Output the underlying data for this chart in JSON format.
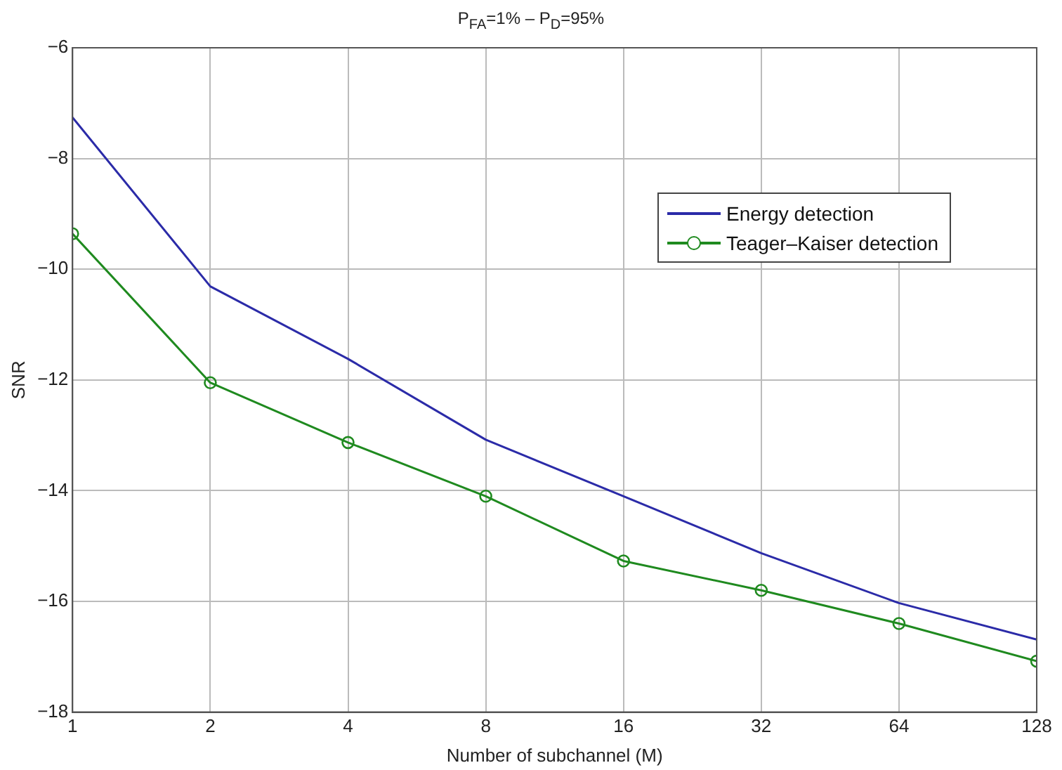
{
  "chart_data": {
    "type": "line",
    "title": "P$_{FA}$=1% – P$_{D}$=95%",
    "xlabel": "Number of subchannel (M)",
    "ylabel": "SNR",
    "log": "x",
    "x": [
      1,
      2,
      4,
      8,
      16,
      32,
      64,
      128
    ],
    "xlim": [
      1,
      128
    ],
    "xticks": [
      1,
      2,
      4,
      8,
      16,
      32,
      64,
      128
    ],
    "ylim": [
      -18,
      -6
    ],
    "yticks": [
      -18,
      -16,
      -14,
      -12,
      -10,
      -8,
      -6
    ],
    "grid": true,
    "legend": "top right",
    "series": [
      {
        "name": "Energy detection",
        "color": "#2b2ba8",
        "marker": "none",
        "values": [
          -7.26,
          -10.31,
          -11.62,
          -13.08,
          -14.1,
          -15.13,
          -16.03,
          -16.69
        ]
      },
      {
        "name": "Teager–Kaiser detection",
        "color": "#1f8a1f",
        "marker": "circle",
        "values": [
          -9.36,
          -12.05,
          -13.13,
          -14.1,
          -15.27,
          -15.8,
          -16.4,
          -17.08
        ]
      }
    ]
  }
}
